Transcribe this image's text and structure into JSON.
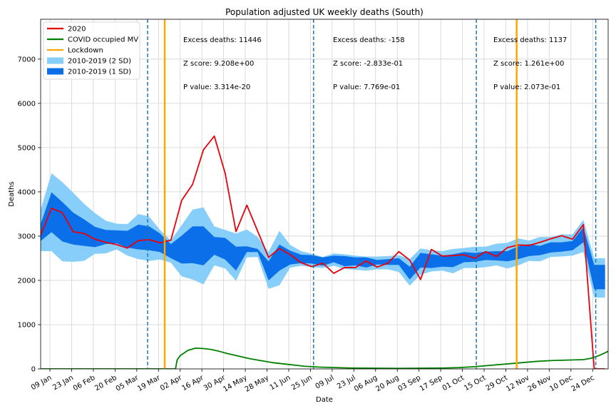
{
  "chart_data": {
    "type": "line",
    "title": "Population adjusted UK weekly deaths (South)",
    "xlabel": "Date",
    "ylabel": "Deaths",
    "ylim": [
      0,
      7900
    ],
    "xlim": [
      "2020-01-03",
      "2021-01-03"
    ],
    "grid": true,
    "legend_position": "top-left",
    "y_ticks": [
      0,
      1000,
      2000,
      3000,
      4000,
      5000,
      6000,
      7000
    ],
    "x_ticks": [
      "2020-01-09",
      "2020-01-23",
      "2020-02-06",
      "2020-02-20",
      "2020-03-05",
      "2020-03-19",
      "2020-04-02",
      "2020-04-16",
      "2020-04-30",
      "2020-05-14",
      "2020-05-28",
      "2020-06-11",
      "2020-06-25",
      "2020-07-09",
      "2020-07-23",
      "2020-08-06",
      "2020-08-20",
      "2020-09-03",
      "2020-09-17",
      "2020-10-01",
      "2020-10-15",
      "2020-10-29",
      "2020-11-12",
      "2020-11-26",
      "2020-12-10",
      "2020-12-24"
    ],
    "x_tick_labels": [
      "09 Jan",
      "23 Jan",
      "06 Feb",
      "20 Feb",
      "05 Mar",
      "19 Mar",
      "02 Apr",
      "16 Apr",
      "30 Apr",
      "14 May",
      "28 May",
      "11 Jun",
      "25 Jun",
      "09 Jul",
      "23 Jul",
      "06 Aug",
      "20 Aug",
      "03 Sep",
      "17 Sep",
      "01 Oct",
      "15 Oct",
      "29 Oct",
      "12 Nov",
      "26 Nov",
      "10 Dec",
      "24 Dec"
    ],
    "legend": [
      {
        "label": "2020",
        "kind": "line",
        "color": "#e8000b"
      },
      {
        "label": "COVID occupied MV",
        "kind": "line",
        "color": "#008000"
      },
      {
        "label": "Lockdown",
        "kind": "line",
        "color": "#ffa500"
      },
      {
        "label": "2010-2019 (2 SD)",
        "kind": "patch",
        "color": "#87cefa"
      },
      {
        "label": "2010-2019 (1 SD)",
        "kind": "patch",
        "color": "#0a6fe8"
      }
    ],
    "weeks": [
      "2020-01-03",
      "2020-01-10",
      "2020-01-17",
      "2020-01-24",
      "2020-01-31",
      "2020-02-07",
      "2020-02-14",
      "2020-02-21",
      "2020-02-28",
      "2020-03-06",
      "2020-03-13",
      "2020-03-20",
      "2020-03-27",
      "2020-04-03",
      "2020-04-10",
      "2020-04-17",
      "2020-04-24",
      "2020-05-01",
      "2020-05-08",
      "2020-05-15",
      "2020-05-22",
      "2020-05-29",
      "2020-06-05",
      "2020-06-12",
      "2020-06-19",
      "2020-06-26",
      "2020-07-03",
      "2020-07-10",
      "2020-07-17",
      "2020-07-24",
      "2020-07-31",
      "2020-08-07",
      "2020-08-14",
      "2020-08-21",
      "2020-08-28",
      "2020-09-04",
      "2020-09-11",
      "2020-09-18",
      "2020-09-25",
      "2020-10-02",
      "2020-10-09",
      "2020-10-16",
      "2020-10-23",
      "2020-10-30",
      "2020-11-06",
      "2020-11-13",
      "2020-11-20",
      "2020-11-27",
      "2020-12-04",
      "2020-12-11",
      "2020-12-18",
      "2020-12-25",
      "2021-01-01"
    ],
    "series_2020": [
      3020,
      3630,
      3530,
      3100,
      3060,
      2930,
      2860,
      2810,
      2730,
      2900,
      2920,
      2850,
      2910,
      3810,
      4170,
      4950,
      5260,
      4420,
      3100,
      3700,
      3110,
      2520,
      2720,
      2580,
      2400,
      2310,
      2390,
      2160,
      2290,
      2290,
      2440,
      2300,
      2390,
      2650,
      2460,
      2020,
      2700,
      2550,
      2560,
      2580,
      2500,
      2650,
      2540,
      2740,
      2800,
      2790,
      2860,
      2940,
      3010,
      2930,
      3260,
      0,
      0
    ],
    "band_1sd_upper": [
      3270,
      3990,
      3770,
      3530,
      3380,
      3210,
      3140,
      3130,
      3120,
      3260,
      3220,
      3060,
      2820,
      3010,
      3220,
      3220,
      2980,
      2960,
      2760,
      2770,
      2710,
      2430,
      2810,
      2670,
      2580,
      2570,
      2520,
      2560,
      2550,
      2520,
      2520,
      2460,
      2480,
      2500,
      2310,
      2620,
      2590,
      2560,
      2590,
      2640,
      2620,
      2650,
      2660,
      2660,
      2770,
      2820,
      2780,
      2860,
      2860,
      2890,
      3200,
      2350,
      2350
    ],
    "band_1sd_lower": [
      2890,
      3090,
      2880,
      2810,
      2780,
      2750,
      2820,
      2840,
      2740,
      2700,
      2680,
      2640,
      2500,
      2380,
      2390,
      2340,
      2580,
      2470,
      2220,
      2640,
      2640,
      2000,
      2220,
      2360,
      2390,
      2380,
      2330,
      2410,
      2320,
      2340,
      2290,
      2360,
      2350,
      2350,
      2020,
      2290,
      2280,
      2310,
      2300,
      2410,
      2420,
      2460,
      2450,
      2430,
      2480,
      2550,
      2570,
      2630,
      2650,
      2680,
      2860,
      1800,
      1800
    ],
    "band_2sd_upper": [
      3600,
      4420,
      4220,
      3980,
      3730,
      3520,
      3350,
      3280,
      3270,
      3500,
      3440,
      3140,
      2900,
      3250,
      3600,
      3650,
      3220,
      3140,
      3060,
      3150,
      2980,
      2640,
      3120,
      2800,
      2660,
      2600,
      2530,
      2610,
      2590,
      2560,
      2540,
      2540,
      2550,
      2570,
      2480,
      2720,
      2680,
      2660,
      2710,
      2730,
      2760,
      2760,
      2830,
      2850,
      2950,
      2900,
      2980,
      2980,
      3040,
      3040,
      3370,
      2500,
      2500
    ],
    "band_2sd_lower": [
      2660,
      2660,
      2430,
      2420,
      2440,
      2600,
      2610,
      2700,
      2560,
      2480,
      2440,
      2470,
      2400,
      2090,
      2020,
      1910,
      2340,
      2270,
      1990,
      2520,
      2530,
      1810,
      1890,
      2290,
      2330,
      2300,
      2280,
      2330,
      2260,
      2240,
      2220,
      2250,
      2250,
      2190,
      1880,
      2130,
      2200,
      2220,
      2160,
      2280,
      2280,
      2300,
      2340,
      2270,
      2340,
      2440,
      2430,
      2530,
      2540,
      2560,
      2640,
      1610,
      1610
    ],
    "covid_mv": [
      [
        0,
        0
      ],
      [
        87,
        0
      ],
      [
        88,
        200
      ],
      [
        90,
        300
      ],
      [
        95,
        420
      ],
      [
        100,
        470
      ],
      [
        105,
        460
      ],
      [
        110,
        440
      ],
      [
        115,
        400
      ],
      [
        120,
        350
      ],
      [
        125,
        310
      ],
      [
        130,
        270
      ],
      [
        135,
        230
      ],
      [
        140,
        200
      ],
      [
        145,
        170
      ],
      [
        150,
        140
      ],
      [
        155,
        120
      ],
      [
        160,
        100
      ],
      [
        165,
        80
      ],
      [
        170,
        60
      ],
      [
        175,
        50
      ],
      [
        180,
        40
      ],
      [
        190,
        30
      ],
      [
        200,
        20
      ],
      [
        215,
        15
      ],
      [
        230,
        12
      ],
      [
        245,
        15
      ],
      [
        260,
        20
      ],
      [
        270,
        30
      ],
      [
        280,
        50
      ],
      [
        290,
        80
      ],
      [
        300,
        110
      ],
      [
        310,
        140
      ],
      [
        320,
        170
      ],
      [
        330,
        190
      ],
      [
        340,
        200
      ],
      [
        350,
        210
      ],
      [
        355,
        240
      ],
      [
        360,
        300
      ],
      [
        365,
        380
      ],
      [
        369,
        460
      ]
    ],
    "lockdown_dates": [
      "2020-03-23",
      "2020-11-05",
      "2021-01-05"
    ],
    "period_dividers": [
      "2020-03-12",
      "2020-06-27",
      "2020-10-10",
      "2020-12-26"
    ],
    "annotations": [
      {
        "excess": "Excess deaths: 11446",
        "z": "Z score: 9.208e+00",
        "p": "P value: 3.314e-20"
      },
      {
        "excess": "Excess deaths: -158",
        "z": "Z score: -2.833e-01",
        "p": "P value: 7.769e-01"
      },
      {
        "excess": "Excess deaths: 1137",
        "z": "Z score: 1.261e+00",
        "p": "P value: 2.073e-01"
      }
    ]
  }
}
